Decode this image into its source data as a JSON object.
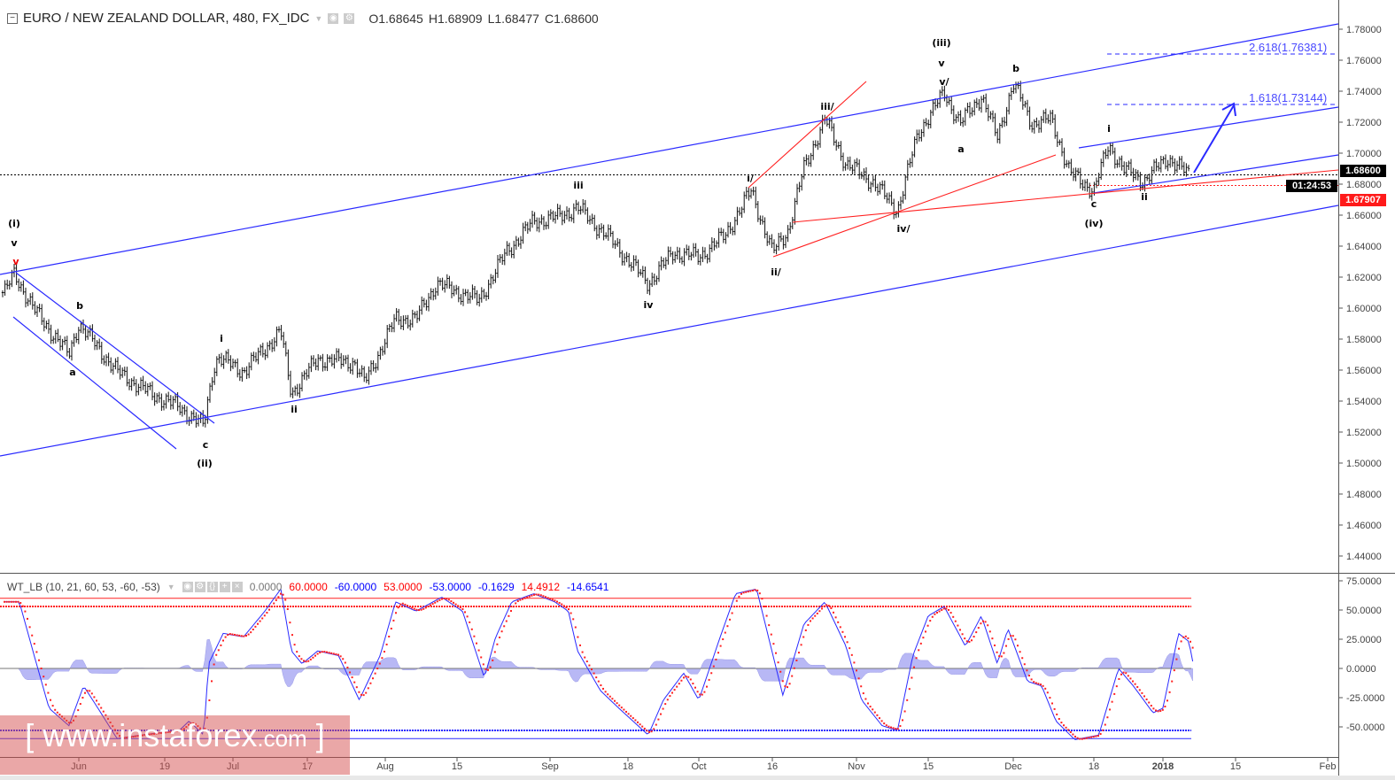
{
  "header": {
    "symbol": "EURO / NEW ZEALAND DOLLAR, 480, FX_IDC",
    "open": "O1.68645",
    "high": "H1.68909",
    "low": "L1.68477",
    "close": "C1.68600"
  },
  "indicator_header": {
    "name": "WT_LB (10, 21, 60, 53, -60, -53)",
    "values": [
      {
        "text": "0.0000",
        "color": "#777777"
      },
      {
        "text": "60.0000",
        "color": "#ff0000"
      },
      {
        "text": "-60.0000",
        "color": "#0000ff"
      },
      {
        "text": "53.0000",
        "color": "#ff0000"
      },
      {
        "text": "-53.0000",
        "color": "#0000ff"
      },
      {
        "text": "-0.1629",
        "color": "#0000ff"
      },
      {
        "text": "14.4912",
        "color": "#ff0000"
      },
      {
        "text": "-14.6541",
        "color": "#0000ff"
      }
    ]
  },
  "price_tags": {
    "last_price": "1.68600",
    "countdown": "01:24:53",
    "red_level": "1.67907"
  },
  "fib_labels": [
    "2.618(1.76381)",
    "1.618(1.73144)"
  ],
  "wave_labels": [
    "(i)",
    "v",
    "v",
    "a",
    "b",
    "c",
    "(ii)",
    "i",
    "ii",
    "iii",
    "iv",
    "i/",
    "ii/",
    "iii/",
    "iv/",
    "(iii)",
    "v",
    "v/",
    "a",
    "b",
    "c",
    "(iv)",
    "i",
    "ii"
  ],
  "watermark": {
    "bracket_l": "[",
    "main": "www.instaforex",
    "suffix": ".com",
    "bracket_r": "]"
  },
  "colors": {
    "channel": "#2a2aff",
    "red_lines": "#ff2020",
    "wt1": "#2a2aff",
    "wt2": "#ff2020",
    "histogram": "#b8b8f5"
  },
  "chart_data": [
    {
      "type": "ohlc",
      "title": "EURO / NEW ZEALAND DOLLAR, 480, FX_IDC",
      "y_ticks": [
        "1.78000",
        "1.76000",
        "1.74000",
        "1.72000",
        "1.70000",
        "1.68000",
        "1.66000",
        "1.64000",
        "1.62000",
        "1.60000",
        "1.58000",
        "1.56000",
        "1.54000",
        "1.52000",
        "1.50000",
        "1.48000",
        "1.46000",
        "1.44000"
      ],
      "ylim": [
        1.435,
        1.79
      ],
      "x_ticks": [
        {
          "label": "Jun",
          "date": "2017-06-01"
        },
        {
          "label": "19",
          "date": "2017-06-19"
        },
        {
          "label": "Jul",
          "date": "2017-07-03"
        },
        {
          "label": "17",
          "date": "2017-07-17"
        },
        {
          "label": "Aug",
          "date": "2017-08-01"
        },
        {
          "label": "15",
          "date": "2017-08-15"
        },
        {
          "label": "Sep",
          "date": "2017-09-01"
        },
        {
          "label": "18",
          "date": "2017-09-18"
        },
        {
          "label": "Oct",
          "date": "2017-10-02"
        },
        {
          "label": "16",
          "date": "2017-10-16"
        },
        {
          "label": "Nov",
          "date": "2017-11-01"
        },
        {
          "label": "15",
          "date": "2017-11-15"
        },
        {
          "label": "Dec",
          "date": "2017-12-01"
        },
        {
          "label": "18",
          "date": "2017-12-18"
        },
        {
          "label": "2018",
          "date": "2018-01-01"
        },
        {
          "label": "15",
          "date": "2018-01-15"
        },
        {
          "label": "Feb",
          "date": "2018-02-01"
        }
      ],
      "close_path": [
        [
          "2017-05-17",
          1.61
        ],
        [
          "2017-05-19",
          1.622
        ],
        [
          "2017-05-23",
          1.599
        ],
        [
          "2017-05-30",
          1.57
        ],
        [
          "2017-06-01",
          1.59
        ],
        [
          "2017-06-09",
          1.559
        ],
        [
          "2017-06-16",
          1.545
        ],
        [
          "2017-06-22",
          1.536
        ],
        [
          "2017-06-27",
          1.524
        ],
        [
          "2017-06-29",
          1.562
        ],
        [
          "2017-06-30",
          1.568
        ],
        [
          "2017-07-05",
          1.559
        ],
        [
          "2017-07-12",
          1.585
        ],
        [
          "2017-07-14",
          1.545
        ],
        [
          "2017-07-19",
          1.567
        ],
        [
          "2017-07-26",
          1.565
        ],
        [
          "2017-07-28",
          1.552
        ],
        [
          "2017-08-03",
          1.593
        ],
        [
          "2017-08-07",
          1.593
        ],
        [
          "2017-08-11",
          1.616
        ],
        [
          "2017-08-19",
          1.605
        ],
        [
          "2017-08-24",
          1.636
        ],
        [
          "2017-08-29",
          1.656
        ],
        [
          "2017-09-03",
          1.659
        ],
        [
          "2017-09-07",
          1.665
        ],
        [
          "2017-09-14",
          1.645
        ],
        [
          "2017-09-22",
          1.616
        ],
        [
          "2017-09-27",
          1.636
        ],
        [
          "2017-10-02",
          1.633
        ],
        [
          "2017-10-07",
          1.647
        ],
        [
          "2017-10-12",
          1.676
        ],
        [
          "2017-10-16",
          1.636
        ],
        [
          "2017-10-19",
          1.65
        ],
        [
          "2017-10-22",
          1.69
        ],
        [
          "2017-10-26",
          1.722
        ],
        [
          "2017-10-30",
          1.693
        ],
        [
          "2017-11-04",
          1.682
        ],
        [
          "2017-11-09",
          1.663
        ],
        [
          "2017-11-13",
          1.713
        ],
        [
          "2017-11-18",
          1.739
        ],
        [
          "2017-11-21",
          1.719
        ],
        [
          "2017-11-25",
          1.737
        ],
        [
          "2017-11-28",
          1.71
        ],
        [
          "2017-12-01",
          1.745
        ],
        [
          "2017-12-05",
          1.719
        ],
        [
          "2017-12-09",
          1.722
        ],
        [
          "2017-12-13",
          1.687
        ],
        [
          "2017-12-18",
          1.676
        ],
        [
          "2017-12-21",
          1.705
        ],
        [
          "2017-12-24",
          1.69
        ],
        [
          "2017-12-28",
          1.682
        ],
        [
          "2018-01-02",
          1.697
        ],
        [
          "2018-01-06",
          1.686
        ]
      ],
      "last": {
        "open": 1.68645,
        "high": 1.68909,
        "low": 1.68477,
        "close": 1.686
      },
      "fib_levels": [
        {
          "ratio": 2.618,
          "price": 1.76381
        },
        {
          "ratio": 1.618,
          "price": 1.73144
        }
      ],
      "horizontal_levels": [
        1.686,
        1.67907
      ],
      "grid": false
    },
    {
      "type": "line",
      "title": "WT_LB (10, 21, 60, 53, -60, -53)",
      "y_ticks": [
        "75.0000",
        "50.0000",
        "25.0000",
        "0.0000",
        "-25.0000",
        "-50.0000"
      ],
      "ylim": [
        -70,
        78
      ],
      "levels": [
        60,
        53,
        -53,
        -60
      ],
      "series": [
        {
          "name": "wt1",
          "points": [
            [
              "2017-05-17",
              57
            ],
            [
              "2017-05-20",
              57
            ],
            [
              "2017-05-23",
              11
            ],
            [
              "2017-05-26",
              -34
            ],
            [
              "2017-05-30",
              -49
            ],
            [
              "2017-06-02",
              -15
            ],
            [
              "2017-06-05",
              -34
            ],
            [
              "2017-06-09",
              -60
            ],
            [
              "2017-06-14",
              -57
            ],
            [
              "2017-06-22",
              -53
            ],
            [
              "2017-06-24",
              -45
            ],
            [
              "2017-06-27",
              -57
            ],
            [
              "2017-06-28",
              4
            ],
            [
              "2017-07-01",
              30
            ],
            [
              "2017-07-05",
              27
            ],
            [
              "2017-07-09",
              49
            ],
            [
              "2017-07-12",
              68
            ],
            [
              "2017-07-14",
              15
            ],
            [
              "2017-07-16",
              4
            ],
            [
              "2017-07-19",
              15
            ],
            [
              "2017-07-23",
              11
            ],
            [
              "2017-07-27",
              -27
            ],
            [
              "2017-07-31",
              11
            ],
            [
              "2017-08-03",
              57
            ],
            [
              "2017-08-07",
              49
            ],
            [
              "2017-08-12",
              61
            ],
            [
              "2017-08-16",
              49
            ],
            [
              "2017-08-20",
              -8
            ],
            [
              "2017-08-22",
              26
            ],
            [
              "2017-08-25",
              57
            ],
            [
              "2017-08-29",
              64
            ],
            [
              "2017-09-02",
              57
            ],
            [
              "2017-09-05",
              49
            ],
            [
              "2017-09-07",
              15
            ],
            [
              "2017-09-12",
              -19
            ],
            [
              "2017-09-16",
              -34
            ],
            [
              "2017-09-22",
              -57
            ],
            [
              "2017-09-25",
              -27
            ],
            [
              "2017-09-29",
              -4
            ],
            [
              "2017-10-02",
              -27
            ],
            [
              "2017-10-06",
              26
            ],
            [
              "2017-10-09",
              64
            ],
            [
              "2017-10-13",
              68
            ],
            [
              "2017-10-18",
              -23
            ],
            [
              "2017-10-22",
              38
            ],
            [
              "2017-10-26",
              57
            ],
            [
              "2017-10-30",
              19
            ],
            [
              "2017-11-02",
              -27
            ],
            [
              "2017-11-06",
              -49
            ],
            [
              "2017-11-09",
              -53
            ],
            [
              "2017-11-12",
              11
            ],
            [
              "2017-11-15",
              45
            ],
            [
              "2017-11-18",
              53
            ],
            [
              "2017-11-22",
              19
            ],
            [
              "2017-11-25",
              45
            ],
            [
              "2017-11-28",
              4
            ],
            [
              "2017-11-30",
              34
            ],
            [
              "2017-12-04",
              -11
            ],
            [
              "2017-12-07",
              -15
            ],
            [
              "2017-12-10",
              -45
            ],
            [
              "2017-12-14",
              -61
            ],
            [
              "2017-12-19",
              -57
            ],
            [
              "2017-12-23",
              0
            ],
            [
              "2017-12-26",
              -15
            ],
            [
              "2017-12-30",
              -38
            ],
            [
              "2018-01-01",
              -34
            ],
            [
              "2018-01-04",
              30
            ],
            [
              "2018-01-06",
              23
            ],
            [
              "2018-01-07",
              0
            ]
          ]
        },
        {
          "name": "wt2",
          "style": "dots"
        },
        {
          "name": "histogram",
          "style": "area"
        }
      ]
    }
  ]
}
